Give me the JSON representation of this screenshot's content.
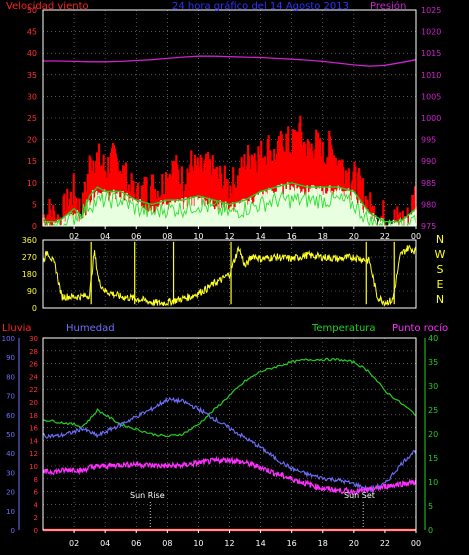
{
  "colors": {
    "wind": "#ff2020",
    "gust": "#ff0000",
    "avgwind": "#20d020",
    "windfill": "#e8ffe0",
    "pressure": "#cc22cc",
    "direction": "#ffff20",
    "rain": "#ff2020",
    "humidity": "#7070ff",
    "temperature": "#20d020",
    "dewpoint": "#ff30ff",
    "title": "#3030ff",
    "ticks": "#ffffff",
    "grid": "#ffffff"
  },
  "chart_data": [
    {
      "type": "line",
      "title": "24 hora gráfico del  14 Agosto 2013",
      "left_label": "Velocidad viento",
      "right_label": "Presión",
      "x_ticks": [
        "02",
        "04",
        "06",
        "08",
        "10",
        "12",
        "14",
        "16",
        "18",
        "20",
        "22",
        "00"
      ],
      "x_range_hours": [
        0,
        24
      ],
      "y_left": {
        "range": [
          0,
          50
        ],
        "ticks": [
          0,
          5,
          10,
          15,
          20,
          25,
          30,
          35,
          40,
          45,
          50
        ]
      },
      "y_right": {
        "range": [
          975,
          1025
        ],
        "ticks": [
          975,
          980,
          985,
          990,
          995,
          1000,
          1005,
          1010,
          1015,
          1020,
          1025
        ]
      },
      "grid": true,
      "series": [
        {
          "role": "gust",
          "x": [
            0,
            0.5,
            1,
            1.5,
            2,
            2.5,
            3,
            3.3,
            3.6,
            4,
            4.5,
            5,
            5.5,
            6,
            6.5,
            7,
            7.5,
            8,
            8.5,
            9,
            9.5,
            10,
            10.5,
            11,
            11.5,
            12,
            12.5,
            13,
            13.5,
            14,
            14.5,
            15,
            15.5,
            16,
            16.5,
            17,
            17.5,
            18,
            18.5,
            19,
            19.5,
            20,
            20.5,
            21,
            21.5,
            22,
            22.5,
            23,
            23.5,
            24
          ],
          "y": [
            2,
            3,
            1,
            4,
            8,
            2,
            14,
            16,
            15,
            13,
            15,
            14,
            9,
            6,
            8,
            9,
            8,
            12,
            13,
            10,
            14,
            12,
            13,
            12,
            10,
            9,
            10,
            14,
            17,
            16,
            18,
            15,
            20,
            18,
            22,
            17,
            19,
            16,
            18,
            15,
            13,
            11,
            8,
            4,
            2,
            2,
            1,
            1,
            1,
            8
          ]
        },
        {
          "role": "avg",
          "x": [
            0,
            1,
            2,
            2.5,
            3,
            3.5,
            4,
            5,
            6,
            7,
            8,
            9,
            10,
            11,
            12,
            13,
            14,
            15,
            16,
            17,
            18,
            19,
            20,
            21,
            22,
            23,
            24
          ],
          "y": [
            1,
            1,
            4,
            2,
            7,
            9,
            8,
            8,
            6,
            5,
            6,
            6,
            7,
            6,
            5,
            6,
            8,
            9,
            10,
            9,
            9,
            9,
            8,
            3,
            1,
            1,
            4
          ]
        },
        {
          "role": "speed",
          "x": [
            0,
            1,
            2,
            3,
            4,
            5,
            6,
            7,
            8,
            9,
            10,
            11,
            12,
            13,
            14,
            15,
            16,
            17,
            18,
            19,
            20,
            21,
            22,
            23,
            24
          ],
          "y": [
            0,
            0,
            2,
            5,
            6,
            6,
            4,
            3,
            4,
            4,
            5,
            4,
            3,
            4,
            5,
            6,
            6,
            6,
            6,
            6,
            5,
            1,
            0,
            0,
            2
          ]
        },
        {
          "role": "pressure",
          "x": [
            0,
            1,
            2,
            3,
            4,
            5,
            6,
            7,
            8,
            9,
            10,
            11,
            12,
            13,
            14,
            15,
            16,
            17,
            18,
            19,
            20,
            21,
            22,
            23,
            24
          ],
          "y": [
            1013.2,
            1013.2,
            1013.1,
            1013.0,
            1013.0,
            1013.1,
            1013.3,
            1013.5,
            1013.8,
            1014.1,
            1014.3,
            1014.3,
            1014.2,
            1014.1,
            1014.0,
            1013.8,
            1013.6,
            1013.4,
            1013.1,
            1012.7,
            1012.3,
            1012.0,
            1012.2,
            1012.8,
            1013.5
          ]
        }
      ]
    },
    {
      "type": "line",
      "y_range": [
        0,
        360
      ],
      "y_ticks": [
        0,
        90,
        180,
        270,
        360
      ],
      "compass_labels": [
        "N",
        "W",
        "S",
        "E",
        "N"
      ],
      "grid": true,
      "series": [
        {
          "role": "direction",
          "x": [
            0,
            0.3,
            0.8,
            1.2,
            2.5,
            3,
            3.3,
            3.6,
            4,
            5,
            6,
            6.5,
            7,
            7.5,
            8,
            8.5,
            9,
            9.5,
            10,
            10.5,
            11,
            11.5,
            12,
            12.3,
            12.6,
            13,
            13.5,
            14,
            15,
            16,
            17,
            18,
            19,
            20,
            20.5,
            21,
            21.5,
            22,
            22.5,
            23,
            23.5,
            24
          ],
          "y": [
            250,
            300,
            220,
            60,
            60,
            70,
            300,
            140,
            90,
            60,
            50,
            40,
            30,
            25,
            30,
            40,
            50,
            60,
            80,
            100,
            130,
            150,
            180,
            250,
            320,
            220,
            280,
            260,
            270,
            260,
            280,
            270,
            260,
            270,
            260,
            250,
            60,
            30,
            40,
            280,
            320,
            300
          ]
        }
      ]
    },
    {
      "type": "line",
      "legend": [
        "Lluvia",
        "Humedad",
        "Temperatura",
        "Punto rocío"
      ],
      "x_ticks": [
        "02",
        "04",
        "06",
        "08",
        "10",
        "12",
        "14",
        "16",
        "18",
        "20",
        "22",
        "00"
      ],
      "annotations": [
        {
          "label": "Sun Rise",
          "hour": 6.9
        },
        {
          "label": "Sun Set",
          "hour": 20.6
        }
      ],
      "axes": [
        {
          "name": "humidity",
          "range": [
            0,
            100
          ],
          "ticks": [
            0,
            10,
            20,
            30,
            40,
            50,
            60,
            70,
            80,
            90,
            100
          ]
        },
        {
          "name": "dewpoint",
          "range": [
            0,
            30
          ],
          "ticks": [
            0,
            2,
            4,
            6,
            8,
            10,
            12,
            14,
            16,
            18,
            20,
            22,
            24,
            26,
            28,
            30
          ]
        },
        {
          "name": "temperature",
          "range": [
            0,
            40
          ],
          "ticks": [
            0,
            5,
            10,
            15,
            20,
            25,
            30,
            35,
            40
          ]
        }
      ],
      "grid": true,
      "series": [
        {
          "role": "temperature",
          "x": [
            0,
            1,
            2,
            2.5,
            3,
            3.5,
            4,
            5,
            6,
            7,
            8,
            9,
            10,
            11,
            12,
            13,
            14,
            15,
            16,
            17,
            18,
            19,
            20,
            21,
            22,
            23,
            24
          ],
          "y": [
            23,
            22.5,
            22,
            21.5,
            23,
            25,
            24,
            22,
            21,
            20,
            19.5,
            20,
            22,
            25,
            28,
            31,
            33,
            34,
            35,
            35.5,
            35.5,
            35.5,
            35,
            33,
            29,
            26.5,
            24
          ]
        },
        {
          "role": "humidity",
          "x": [
            0,
            1,
            2,
            2.5,
            3,
            3.5,
            4,
            5,
            6,
            7,
            8,
            9,
            10,
            11,
            12,
            13,
            14,
            15,
            16,
            17,
            18,
            19,
            20,
            21,
            22,
            23,
            24
          ],
          "y": [
            49,
            49,
            51,
            53,
            51,
            49,
            51,
            55,
            59,
            63,
            68,
            67,
            63,
            58,
            53,
            48,
            43,
            37,
            32,
            29,
            27,
            26,
            24,
            21,
            24,
            34,
            42
          ]
        },
        {
          "role": "dewpoint",
          "x": [
            0,
            1,
            2,
            2.5,
            3,
            4,
            5,
            6,
            7,
            8,
            9,
            10,
            11,
            12,
            13,
            14,
            15,
            16,
            17,
            18,
            19,
            20,
            21,
            22,
            23,
            24
          ],
          "y": [
            9,
            9.2,
            9.5,
            9.2,
            9.8,
            10,
            10.2,
            10.3,
            10.1,
            10,
            10.1,
            10.5,
            10.8,
            11,
            10.5,
            9.8,
            8.8,
            8,
            7.2,
            6.5,
            6.2,
            6,
            6.2,
            6.8,
            7.2,
            7.5
          ]
        },
        {
          "role": "rain",
          "x": [
            0,
            24
          ],
          "y": [
            0,
            0
          ]
        }
      ]
    }
  ]
}
